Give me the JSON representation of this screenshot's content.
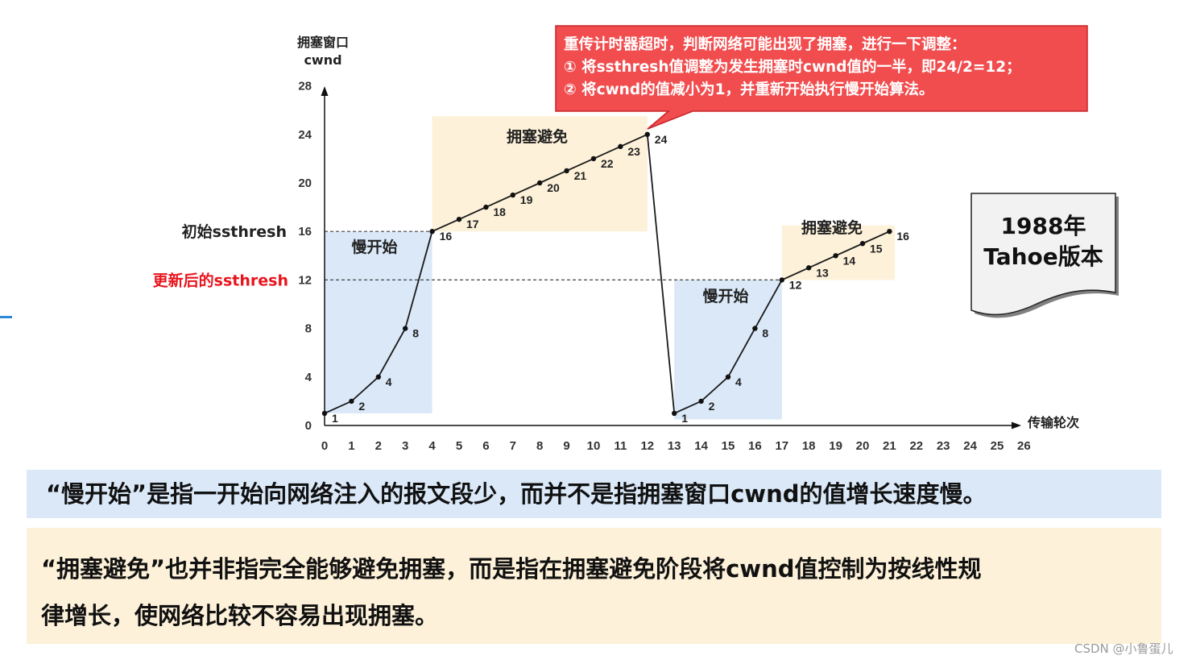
{
  "callout": {
    "lines": [
      "重传计时器超时，判断网络可能出现了拥塞，进行一下调整：",
      "①  将ssthresh值调整为发生拥塞时cwnd值的一半，即24/2=12；",
      "②  将cwnd的值减小为1，并重新开始执行慢开始算法。"
    ]
  },
  "version_box": {
    "line1": "1988年",
    "line2": "Tahoe版本"
  },
  "notes": {
    "slow_start": "“慢开始”是指一开始向网络注入的报文段少，而并不是指拥塞窗口cwnd的值增长速度慢。",
    "avoid_line1": "“拥塞避免”也并非指完全能够避免拥塞，而是指在拥塞避免阶段将cwnd值控制为按线性规",
    "avoid_line2": "律增长，使网络比较不容易出现拥塞。"
  },
  "watermark": "CSDN @小鲁蛋儿",
  "colors": {
    "slow_start_bg": "#dae8f8",
    "avoid_bg": "#fdf1d9",
    "callout_bg": "#f14d4f",
    "new_threshold_text": "#e8141d",
    "line": "#1a1a1a"
  },
  "chart_data": {
    "type": "line",
    "ylabel_line1": "拥塞窗口",
    "ylabel_line2": "cwnd",
    "xlabel": "传输轮次",
    "xlim": [
      0,
      26
    ],
    "ylim": [
      0,
      28
    ],
    "xticks": [
      0,
      1,
      2,
      3,
      4,
      5,
      6,
      7,
      8,
      9,
      10,
      11,
      12,
      13,
      14,
      15,
      16,
      17,
      18,
      19,
      20,
      21,
      22,
      23,
      24,
      25,
      26
    ],
    "yticks": [
      0,
      4,
      8,
      12,
      16,
      20,
      24,
      28
    ],
    "x": [
      0,
      1,
      2,
      3,
      4,
      5,
      6,
      7,
      8,
      9,
      10,
      11,
      12,
      13,
      14,
      15,
      16,
      17,
      18,
      19,
      20,
      21
    ],
    "y": [
      1,
      2,
      4,
      8,
      16,
      17,
      18,
      19,
      20,
      21,
      22,
      23,
      24,
      1,
      2,
      4,
      8,
      12,
      13,
      14,
      15,
      16
    ],
    "thresholds": [
      {
        "label": "初始ssthresh",
        "value": 16
      },
      {
        "label": "更新后的ssthresh",
        "value": 12
      }
    ],
    "regions": [
      {
        "label": "慢开始",
        "x": [
          0,
          4
        ],
        "y": [
          1,
          16
        ],
        "kind": "slow"
      },
      {
        "label": "拥塞避免",
        "x": [
          4,
          12
        ],
        "y": [
          16,
          25.5
        ],
        "kind": "avoid"
      },
      {
        "label": "慢开始",
        "x": [
          13,
          17
        ],
        "y": [
          0.5,
          12
        ],
        "kind": "slow"
      },
      {
        "label": "拥塞避免",
        "x": [
          17,
          21.2
        ],
        "y": [
          12,
          16.5
        ],
        "kind": "avoid"
      }
    ]
  }
}
